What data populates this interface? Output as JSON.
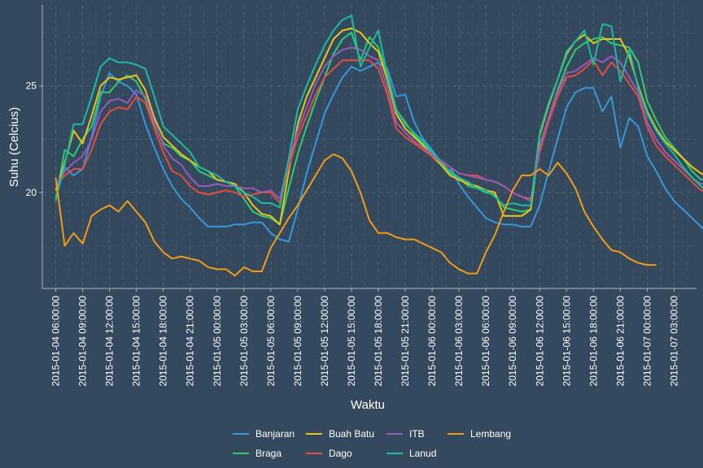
{
  "chart_data": {
    "type": "line",
    "title": "",
    "xlabel": "Waktu",
    "ylabel": "Suhu (Celcius)",
    "ylim": [
      15.5,
      28.8
    ],
    "yticks": [
      20,
      25
    ],
    "xlim_hours": [
      -1.5,
      71.5
    ],
    "xtick_labels": [
      "2015-01-04 06:00:00",
      "2015-01-04 09:00:00",
      "2015-01-04 12:00:00",
      "2015-01-04 15:00:00",
      "2015-01-04 18:00:00",
      "2015-01-04 21:00:00",
      "2015-01-05 00:00:00",
      "2015-01-05 03:00:00",
      "2015-01-05 06:00:00",
      "2015-01-05 09:00:00",
      "2015-01-05 12:00:00",
      "2015-01-05 15:00:00",
      "2015-01-05 18:00:00",
      "2015-01-05 21:00:00",
      "2015-01-06 00:00:00",
      "2015-01-06 03:00:00",
      "2015-01-06 06:00:00",
      "2015-01-06 09:00:00",
      "2015-01-06 12:00:00",
      "2015-01-06 15:00:00",
      "2015-01-06 18:00:00",
      "2015-01-06 21:00:00",
      "2015-01-07 00:00:00",
      "2015-01-07 03:00:00"
    ],
    "grid": true,
    "legend_position": "bottom",
    "x_start": "2015-01-04 06:00:00",
    "x_step_hours": 1,
    "series": [
      {
        "name": "Banjaran",
        "color": "#3498db",
        "values": [
          19.7,
          21.2,
          20.8,
          21.1,
          22.6,
          24.5,
          25.6,
          25.2,
          25.0,
          24.6,
          23.2,
          22.1,
          21.1,
          20.3,
          19.7,
          19.3,
          18.8,
          18.4,
          18.4,
          18.4,
          18.5,
          18.5,
          18.6,
          18.6,
          18.1,
          17.8,
          17.7,
          19.2,
          20.9,
          22.3,
          23.7,
          24.6,
          25.4,
          25.9,
          25.7,
          25.9,
          26.1,
          25.8,
          24.5,
          24.6,
          23.3,
          22.5,
          22.0,
          21.4,
          21.2,
          20.4,
          19.8,
          19.3,
          18.8,
          18.6,
          18.5,
          18.5,
          18.4,
          18.4,
          19.4,
          21.0,
          22.5,
          24.0,
          24.7,
          24.9,
          24.9,
          23.8,
          24.5,
          22.1,
          23.5,
          23.1,
          21.7,
          21.0,
          20.2,
          19.6,
          19.2,
          18.8,
          18.4,
          18.0
        ]
      },
      {
        "name": "Braga",
        "color": "#2ecc71",
        "values": [
          19.6,
          22.0,
          21.7,
          22.5,
          23.1,
          24.7,
          24.7,
          25.2,
          25.5,
          25.2,
          24.4,
          23.2,
          22.3,
          22.1,
          21.7,
          21.5,
          21.0,
          20.8,
          20.6,
          20.5,
          20.3,
          19.7,
          19.1,
          18.9,
          18.8,
          18.5,
          20.2,
          21.8,
          23.1,
          24.3,
          25.4,
          26.5,
          27.2,
          27.5,
          26.2,
          27.3,
          26.8,
          25.6,
          23.9,
          23.3,
          22.7,
          22.3,
          21.8,
          21.3,
          20.9,
          20.7,
          20.3,
          20.2,
          20.0,
          19.9,
          19.3,
          19.2,
          19.1,
          19.2,
          22.2,
          23.5,
          24.8,
          25.9,
          26.7,
          27.0,
          27.2,
          27.3,
          27.0,
          26.9,
          26.8,
          26.1,
          24.3,
          23.4,
          22.6,
          22.1,
          21.6,
          21.0,
          20.6,
          20.7
        ]
      },
      {
        "name": "Buah Batu",
        "color": "#f1c40f",
        "values": [
          20.1,
          21.4,
          22.9,
          22.3,
          23.6,
          25.0,
          25.4,
          25.3,
          25.4,
          25.5,
          24.8,
          23.5,
          22.6,
          22.2,
          21.8,
          21.5,
          21.2,
          21.0,
          20.6,
          20.5,
          20.4,
          20.0,
          19.4,
          19.0,
          18.9,
          18.5,
          21.0,
          23.2,
          24.5,
          25.4,
          26.3,
          27.2,
          27.6,
          27.7,
          27.5,
          27.0,
          26.6,
          25.3,
          23.7,
          23.0,
          22.6,
          22.2,
          21.7,
          21.3,
          20.8,
          20.6,
          20.4,
          20.3,
          20.1,
          20.0,
          18.9,
          18.9,
          18.9,
          19.2,
          22.7,
          24.1,
          25.3,
          26.5,
          27.1,
          27.4,
          27.0,
          27.2,
          27.2,
          27.2,
          26.4,
          25.0,
          23.8,
          23.0,
          22.4,
          22.0,
          21.6,
          21.2,
          20.9,
          20.7
        ]
      },
      {
        "name": "Dago",
        "color": "#e74c3c",
        "values": [
          20.3,
          20.8,
          21.1,
          21.1,
          22.0,
          23.2,
          23.8,
          24.0,
          23.9,
          24.5,
          24.2,
          23.0,
          21.9,
          21.0,
          20.8,
          20.3,
          20.0,
          19.9,
          20.0,
          20.1,
          20.0,
          19.8,
          19.9,
          20.0,
          20.0,
          19.5,
          21.2,
          22.6,
          23.6,
          24.6,
          25.4,
          25.8,
          26.2,
          26.2,
          26.2,
          26.2,
          25.8,
          24.6,
          23.0,
          22.6,
          22.3,
          22.0,
          21.7,
          21.4,
          21.2,
          20.9,
          20.8,
          20.8,
          20.6,
          20.5,
          20.3,
          20.0,
          19.8,
          19.7,
          21.9,
          23.3,
          24.5,
          25.4,
          25.5,
          25.8,
          26.2,
          25.5,
          26.1,
          25.7,
          25.1,
          24.5,
          23.1,
          22.2,
          21.7,
          21.3,
          20.9,
          20.5,
          20.1,
          20.1
        ]
      },
      {
        "name": "ITB",
        "color": "#9b59b6",
        "values": [
          20.3,
          21.0,
          21.4,
          21.7,
          22.5,
          23.8,
          24.3,
          24.4,
          24.2,
          24.8,
          24.5,
          23.3,
          22.2,
          21.6,
          21.3,
          20.7,
          20.3,
          20.3,
          20.4,
          20.3,
          20.3,
          20.2,
          20.2,
          20.0,
          20.1,
          19.7,
          21.5,
          22.9,
          24.0,
          25.1,
          25.9,
          26.4,
          26.7,
          26.8,
          26.7,
          26.4,
          26.2,
          24.9,
          23.3,
          22.8,
          22.4,
          22.1,
          21.8,
          21.5,
          21.2,
          20.9,
          20.8,
          20.7,
          20.6,
          20.5,
          20.3,
          20.0,
          19.8,
          19.6,
          22.1,
          23.5,
          24.7,
          25.6,
          25.7,
          26.0,
          26.3,
          26.1,
          26.4,
          26.1,
          25.4,
          24.7,
          23.3,
          22.5,
          21.9,
          21.5,
          21.1,
          20.7,
          20.4,
          20.4
        ]
      },
      {
        "name": "Lanud",
        "color": "#1abc9c",
        "values": [
          19.8,
          21.3,
          23.2,
          23.2,
          24.5,
          25.9,
          26.3,
          26.1,
          26.1,
          26.0,
          25.8,
          24.5,
          23.1,
          22.7,
          22.3,
          21.9,
          21.2,
          21.0,
          20.8,
          20.5,
          20.3,
          20.0,
          19.8,
          19.5,
          19.5,
          19.3,
          21.6,
          23.9,
          25.0,
          26.0,
          26.9,
          27.6,
          28.1,
          28.3,
          25.9,
          26.8,
          27.6,
          25.5,
          23.9,
          23.2,
          22.8,
          22.4,
          21.9,
          21.4,
          21.0,
          20.7,
          20.5,
          20.2,
          20.1,
          19.8,
          19.4,
          19.5,
          19.4,
          19.4,
          22.8,
          24.2,
          25.3,
          26.6,
          27.1,
          27.6,
          26.0,
          27.9,
          27.8,
          25.2,
          26.7,
          24.9,
          23.7,
          22.9,
          22.3,
          21.8,
          21.2,
          20.7,
          20.3,
          19.9
        ]
      },
      {
        "name": "Lembang",
        "color": "#f39c12",
        "values": [
          20.7,
          17.5,
          18.1,
          17.6,
          18.9,
          19.2,
          19.4,
          19.1,
          19.6,
          19.1,
          18.6,
          17.7,
          17.2,
          16.9,
          17.0,
          16.9,
          16.8,
          16.5,
          16.4,
          16.4,
          16.1,
          16.5,
          16.3,
          16.3,
          17.4,
          18.1,
          18.8,
          19.4,
          20.1,
          20.8,
          21.5,
          21.8,
          21.6,
          21.0,
          20.0,
          18.7,
          18.1,
          18.1,
          17.9,
          17.8,
          17.8,
          17.6,
          17.4,
          17.2,
          16.7,
          16.4,
          16.2,
          16.2,
          17.2,
          18.0,
          19.1,
          20.1,
          20.8,
          20.8,
          21.1,
          20.8,
          21.4,
          20.9,
          20.2,
          19.1,
          18.4,
          17.8,
          17.3,
          17.2,
          16.9,
          16.7,
          16.6,
          16.6
        ]
      }
    ]
  }
}
